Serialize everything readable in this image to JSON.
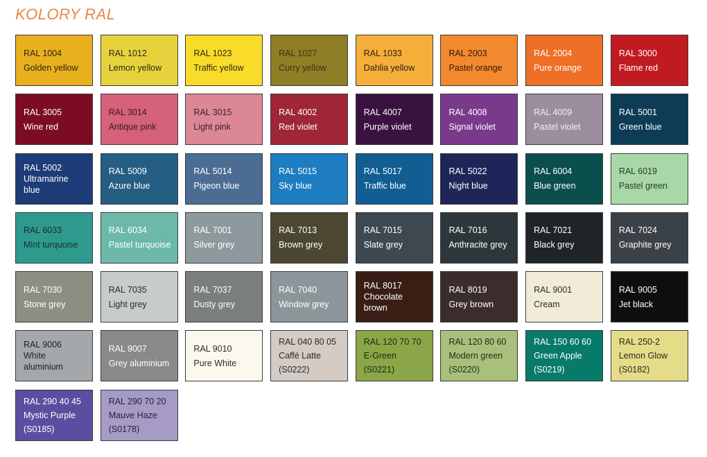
{
  "title": "KOLORY RAL",
  "swatches": [
    {
      "lines": [
        "RAL 1004",
        "Golden yellow"
      ],
      "color": "#E8B01F",
      "text": "#2a2410"
    },
    {
      "lines": [
        "RAL 1012",
        "Lemon yellow"
      ],
      "color": "#E6D23C",
      "text": "#2a2a14"
    },
    {
      "lines": [
        "RAL 1023",
        "Traffic yellow"
      ],
      "color": "#F9DB2A",
      "text": "#2a2a14"
    },
    {
      "lines": [
        "RAL 1027",
        "Curry yellow"
      ],
      "color": "#8E7E25",
      "text": "#3a3418"
    },
    {
      "lines": [
        "RAL 1033",
        "Dahlia yellow"
      ],
      "color": "#F6AE3A",
      "text": "#2a2014"
    },
    {
      "lines": [
        "RAL 2003",
        "Pastel orange"
      ],
      "color": "#F2892E",
      "text": "#2a1a10"
    },
    {
      "lines": [
        "RAL 2004",
        "Pure orange"
      ],
      "color": "#EE6F25",
      "text": "#ffffff"
    },
    {
      "lines": [
        "RAL 3000",
        "Flame red"
      ],
      "color": "#C11B22",
      "text": "#ffffff"
    },
    {
      "lines": [
        "RAL 3005",
        "Wine red"
      ],
      "color": "#7C0C22",
      "text": "#ffffff"
    },
    {
      "lines": [
        "RAL 3014",
        "Antique pink"
      ],
      "color": "#D5617A",
      "text": "#3a1a20"
    },
    {
      "lines": [
        "RAL 3015",
        "Light pink"
      ],
      "color": "#DC8796",
      "text": "#3a2228"
    },
    {
      "lines": [
        "RAL 4002",
        "Red violet"
      ],
      "color": "#9E2636",
      "text": "#ffffff"
    },
    {
      "lines": [
        "RAL 4007",
        "Purple violet"
      ],
      "color": "#3A1240",
      "text": "#ffffff"
    },
    {
      "lines": [
        "RAL 4008",
        "Signal violet"
      ],
      "color": "#7A3A8C",
      "text": "#ffffff"
    },
    {
      "lines": [
        "RAL 4009",
        "Pastel violet"
      ],
      "color": "#9C8E9E",
      "text": "#f2eef2"
    },
    {
      "lines": [
        "RAL 5001",
        "Green blue"
      ],
      "color": "#0E3B56",
      "text": "#ffffff"
    },
    {
      "lines": [
        "RAL 5002",
        "Ultramarine",
        "blue"
      ],
      "color": "#1D3C78",
      "text": "#ffffff"
    },
    {
      "lines": [
        "RAL 5009",
        "Azure blue"
      ],
      "color": "#245E82",
      "text": "#ffffff"
    },
    {
      "lines": [
        "RAL 5014",
        "Pigeon blue"
      ],
      "color": "#4B6D94",
      "text": "#ffffff"
    },
    {
      "lines": [
        "RAL 5015",
        "Sky blue"
      ],
      "color": "#1E7DC0",
      "text": "#ffffff"
    },
    {
      "lines": [
        "RAL 5017",
        "Traffic blue"
      ],
      "color": "#105E92",
      "text": "#ffffff"
    },
    {
      "lines": [
        "RAL 5022",
        "Night blue"
      ],
      "color": "#1E2558",
      "text": "#ffffff"
    },
    {
      "lines": [
        "RAL 6004",
        "Blue green"
      ],
      "color": "#0B4F4C",
      "text": "#ffffff"
    },
    {
      "lines": [
        "RAL 6019",
        "Pastel green"
      ],
      "color": "#A8D8A8",
      "text": "#2a3a2a"
    },
    {
      "lines": [
        "RAL 6033",
        "Mint turquoise"
      ],
      "color": "#2E9A8E",
      "text": "#1a2e2a"
    },
    {
      "lines": [
        "RAL 6034",
        "Pastel turquoise"
      ],
      "color": "#6CB9AA",
      "text": "#ffffff"
    },
    {
      "lines": [
        "RAL 7001",
        "Silver grey"
      ],
      "color": "#8E999E",
      "text": "#ffffff"
    },
    {
      "lines": [
        "RAL 7013",
        "Brown grey"
      ],
      "color": "#4C4730",
      "text": "#ffffff"
    },
    {
      "lines": [
        "RAL 7015",
        "Slate grey"
      ],
      "color": "#3E4850",
      "text": "#ffffff"
    },
    {
      "lines": [
        "RAL 7016",
        "Anthracite grey"
      ],
      "color": "#2D373B",
      "text": "#ffffff"
    },
    {
      "lines": [
        "RAL 7021",
        "Black grey"
      ],
      "color": "#1E2428",
      "text": "#ffffff"
    },
    {
      "lines": [
        "RAL 7024",
        "Graphite grey"
      ],
      "color": "#3A4248",
      "text": "#ffffff"
    },
    {
      "lines": [
        "RAL 7030",
        "Stone grey"
      ],
      "color": "#8E8E84",
      "text": "#ffffff"
    },
    {
      "lines": [
        "RAL 7035",
        "Light grey"
      ],
      "color": "#C8CCC8",
      "text": "#2a2a2a"
    },
    {
      "lines": [
        "RAL 7037",
        "Dusty grey"
      ],
      "color": "#7A7E7E",
      "text": "#ffffff"
    },
    {
      "lines": [
        "RAL 7040",
        "Window grey"
      ],
      "color": "#8C969A",
      "text": "#ffffff"
    },
    {
      "lines": [
        "RAL 8017",
        "Chocolate",
        "brown"
      ],
      "color": "#3A1D14",
      "text": "#ffffff"
    },
    {
      "lines": [
        "RAL 8019",
        "Grey brown"
      ],
      "color": "#3A2D2C",
      "text": "#ffffff"
    },
    {
      "lines": [
        "RAL 9001",
        "Cream"
      ],
      "color": "#F1EBD9",
      "text": "#2a2a2a"
    },
    {
      "lines": [
        "RAL 9005",
        "Jet black"
      ],
      "color": "#0E0E10",
      "text": "#ffffff"
    },
    {
      "lines": [
        "RAL 9006",
        "White",
        "aluminium"
      ],
      "color": "#A5A8AA",
      "text": "#222222"
    },
    {
      "lines": [
        "RAL 9007",
        "Grey aluminium"
      ],
      "color": "#8A8A88",
      "text": "#ffffff"
    },
    {
      "lines": [
        "RAL 9010",
        "Pure White"
      ],
      "color": "#FBF9EE",
      "text": "#2a2a2a"
    },
    {
      "lines": [
        "RAL 040 80 05",
        "Caffé Latte",
        "(S0222)"
      ],
      "color": "#D3CBC4",
      "text": "#2a2a2a"
    },
    {
      "lines": [
        "RAL 120 70 70",
        "E-Green",
        "(S0221)"
      ],
      "color": "#8BA648",
      "text": "#1e2a10"
    },
    {
      "lines": [
        "RAL 120 80 60",
        "Modern green",
        "(S0220)"
      ],
      "color": "#A8C07C",
      "text": "#1e2a14"
    },
    {
      "lines": [
        "RAL 150 60 60",
        "Green Apple",
        "(S0219)"
      ],
      "color": "#077A6A",
      "text": "#ffffff"
    },
    {
      "lines": [
        "RAL 250-2",
        "Lemon Glow",
        "(S0182)"
      ],
      "color": "#E4DC88",
      "text": "#2a2a1a"
    },
    {
      "lines": [
        "RAL 290 40 45",
        "Mystic Purple",
        "(S0185)"
      ],
      "color": "#5A4EA0",
      "text": "#ffffff"
    },
    {
      "lines": [
        "RAL 290 70 20",
        "Mauve Haze",
        "(S0178)"
      ],
      "color": "#A69AC6",
      "text": "#2a2436"
    }
  ]
}
